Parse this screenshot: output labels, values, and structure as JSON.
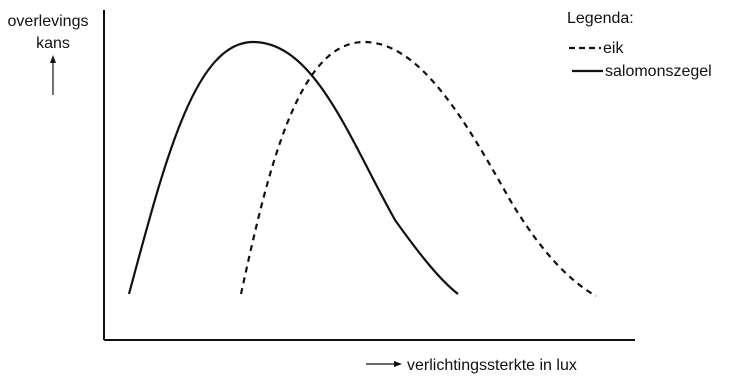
{
  "chart_data": {
    "type": "line",
    "title": "",
    "ylabel_line1": "overlevings",
    "ylabel_line2": "kans",
    "xlabel": "verlichtingssterkte in lux",
    "legend": {
      "title": "Legenda:",
      "placement": "top-right",
      "entries": [
        {
          "label": "eik",
          "style": "dashed"
        },
        {
          "label": "salomonszegel",
          "style": "solid"
        }
      ]
    },
    "grid": false,
    "x_ticks": "none",
    "y_ticks": "none",
    "series": [
      {
        "name": "salomonszegel",
        "style": "solid",
        "shape": "unimodal curve, peak at low-medium light"
      },
      {
        "name": "eik",
        "style": "dashed",
        "shape": "unimodal curve, peak at higher light"
      }
    ]
  }
}
